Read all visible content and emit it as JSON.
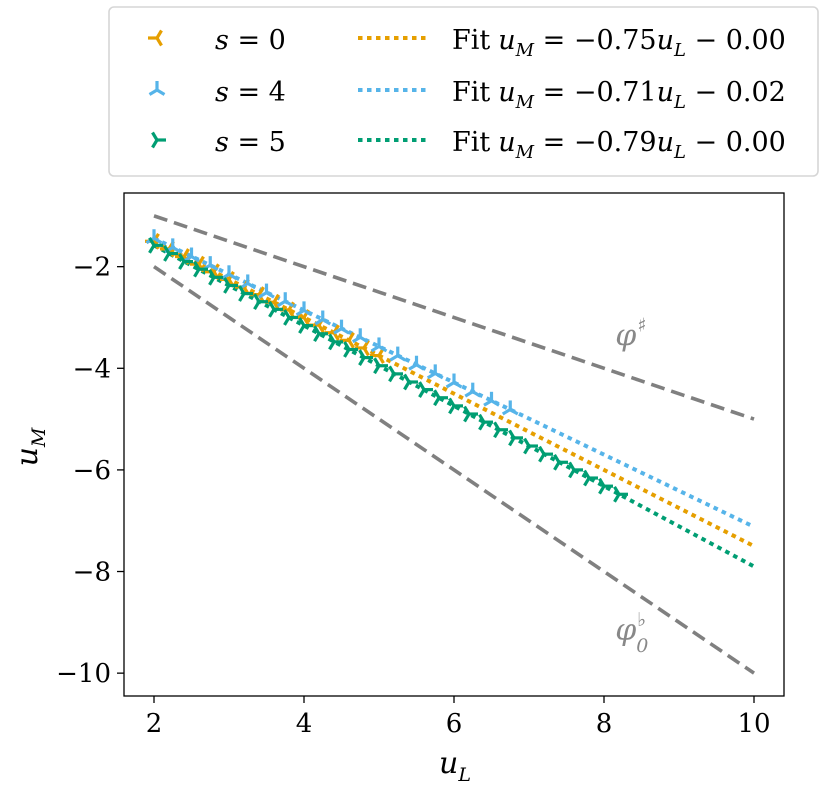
{
  "chart_data": {
    "type": "line",
    "xlabel": "u",
    "xlabel_sub": "L",
    "ylabel": "u",
    "ylabel_sub": "M",
    "xlim": [
      1.6,
      10.4
    ],
    "ylim": [
      -10.45,
      -0.55
    ],
    "xticks": [
      2,
      4,
      6,
      8,
      10
    ],
    "yticks": [
      -2,
      -4,
      -6,
      -8,
      -10
    ],
    "xtick_labels": [
      "2",
      "4",
      "6",
      "8",
      "10"
    ],
    "ytick_labels": [
      "−2",
      "−4",
      "−6",
      "−8",
      "−10"
    ],
    "grid": false,
    "legend_position": "top, outside plot",
    "reference_lines": [
      {
        "name": "phi-sharp",
        "label": "φ",
        "superscript": "♯",
        "subscript": "",
        "x": [
          2,
          10
        ],
        "y": [
          -1,
          -5
        ],
        "color": "#808080",
        "label_at": [
          8.15,
          -3.55
        ]
      },
      {
        "name": "phi-flat",
        "label": "φ",
        "superscript": "♭",
        "subscript": "0",
        "x": [
          2,
          10
        ],
        "y": [
          -2,
          -10
        ],
        "color": "#808080",
        "label_at": [
          8.15,
          -9.35
        ]
      }
    ],
    "series": [
      {
        "name": "s = 0",
        "s_value": "0",
        "color": "#e69f00",
        "marker_rotation": 90,
        "fit_label": "Fit",
        "fit_text": " = −0.75",
        "fit_tail": " − 0.00",
        "fit_slope": -0.75,
        "fit_intercept": 0.0,
        "fit_x": [
          2,
          10
        ],
        "x": [
          2.0,
          2.2,
          2.4,
          2.6,
          2.8,
          3.0,
          3.2,
          3.4,
          3.6,
          3.8,
          4.0,
          4.2,
          4.4,
          4.6,
          4.8,
          5.0
        ],
        "y": [
          -1.5,
          -1.65,
          -1.8,
          -1.95,
          -2.1,
          -2.25,
          -2.4,
          -2.55,
          -2.7,
          -2.85,
          -3.0,
          -3.15,
          -3.3,
          -3.45,
          -3.6,
          -3.75
        ]
      },
      {
        "name": "s = 4",
        "s_value": "4",
        "color": "#56b4e9",
        "marker_rotation": 180,
        "fit_label": "Fit",
        "fit_text": " = −0.71",
        "fit_tail": " − 0.02",
        "fit_slope": -0.71,
        "fit_intercept": -0.02,
        "fit_x": [
          2,
          10
        ],
        "x": [
          2.0,
          2.25,
          2.5,
          2.75,
          3.0,
          3.25,
          3.5,
          3.75,
          4.0,
          4.25,
          4.5,
          4.75,
          5.0,
          5.25,
          5.5,
          5.75,
          6.0,
          6.25,
          6.5,
          6.75
        ],
        "y": [
          -1.44,
          -1.62,
          -1.8,
          -1.97,
          -2.15,
          -2.33,
          -2.51,
          -2.68,
          -2.86,
          -3.04,
          -3.22,
          -3.39,
          -3.57,
          -3.75,
          -3.93,
          -4.1,
          -4.28,
          -4.46,
          -4.64,
          -4.81
        ]
      },
      {
        "name": "s = 5",
        "s_value": "5",
        "color": "#009e73",
        "marker_rotation": 270,
        "fit_label": "Fit",
        "fit_text": " = −0.79",
        "fit_tail": " − 0.00",
        "fit_slope": -0.79,
        "fit_intercept": 0.0,
        "fit_x": [
          2,
          10
        ],
        "x": [
          2.0,
          2.2,
          2.4,
          2.6,
          2.8,
          3.0,
          3.2,
          3.4,
          3.6,
          3.8,
          4.0,
          4.2,
          4.4,
          4.6,
          4.8,
          5.0,
          5.2,
          5.4,
          5.6,
          5.8,
          6.0,
          6.2,
          6.4,
          6.6,
          6.8,
          7.0,
          7.2,
          7.4,
          7.6,
          7.8,
          8.0,
          8.2
        ],
        "y": [
          -1.58,
          -1.74,
          -1.9,
          -2.05,
          -2.21,
          -2.37,
          -2.53,
          -2.69,
          -2.84,
          -3.0,
          -3.16,
          -3.32,
          -3.48,
          -3.63,
          -3.79,
          -3.95,
          -4.11,
          -4.27,
          -4.42,
          -4.58,
          -4.74,
          -4.9,
          -5.06,
          -5.21,
          -5.37,
          -5.53,
          -5.69,
          -5.85,
          -6.0,
          -6.16,
          -6.32,
          -6.48
        ]
      }
    ]
  }
}
